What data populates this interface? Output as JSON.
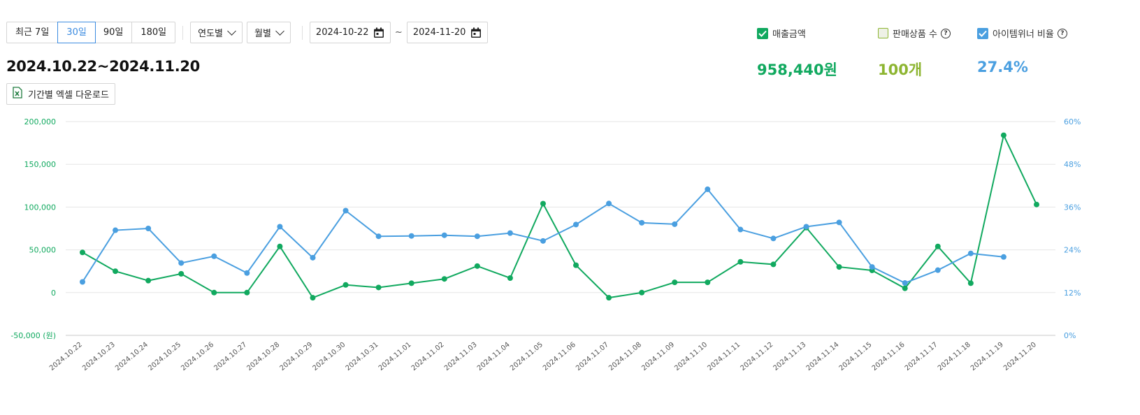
{
  "toolbar": {
    "period_buttons": [
      "최근 7일",
      "30일",
      "90일",
      "180일"
    ],
    "active_period": "30일",
    "yearly_select": "연도별",
    "monthly_select": "월별",
    "start_date": "2024-10-22",
    "end_date": "2024-11-20",
    "tilde": "~"
  },
  "range_title": "2024.10.22~2024.11.20",
  "excel_button": "기간별 엑셀 다운로드",
  "metrics": [
    {
      "label": "매출금액",
      "value": "958,440원",
      "color": "#11a95f",
      "checked": true,
      "help": false
    },
    {
      "label": "판매상품 수",
      "value": "100개",
      "color": "#8db531",
      "checked": false,
      "help": true
    },
    {
      "label": "아이템위너 비율",
      "value": "27.4%",
      "color": "#4a9fe0",
      "checked": true,
      "help": true
    }
  ],
  "colors": {
    "sales": "#11a95f",
    "ratio": "#4a9fe0",
    "accent": "#3b8be0",
    "grid": "#e6e6e6"
  },
  "icons": [
    "calendar-icon",
    "excel-icon",
    "checkbox-icon",
    "help-icon",
    "chevron-down-icon"
  ],
  "chart_data": {
    "type": "line",
    "x": [
      "2024.10.22",
      "2024.10.23",
      "2024.10.24",
      "2024.10.25",
      "2024.10.26",
      "2024.10.27",
      "2024.10.28",
      "2024.10.29",
      "2024.10.30",
      "2024.10.31",
      "2024.11.01",
      "2024.11.02",
      "2024.11.03",
      "2024.11.04",
      "2024.11.05",
      "2024.11.06",
      "2024.11.07",
      "2024.11.08",
      "2024.11.09",
      "2024.11.10",
      "2024.11.11",
      "2024.11.12",
      "2024.11.13",
      "2024.11.14",
      "2024.11.15",
      "2024.11.16",
      "2024.11.17",
      "2024.11.18",
      "2024.11.19",
      "2024.11.20"
    ],
    "y_left": {
      "ticks": [
        "200,000",
        "150,000",
        "100,000",
        "50,000",
        "0",
        "-50,000 (원)"
      ],
      "min": -50000,
      "max": 200000,
      "tick_values": [
        200000,
        150000,
        100000,
        50000,
        0,
        -50000
      ]
    },
    "y_right": {
      "ticks": [
        "60%",
        "48%",
        "36%",
        "24%",
        "12%",
        "0%"
      ],
      "min": 0,
      "max": 60,
      "tick_values": [
        60,
        48,
        36,
        24,
        12,
        0
      ]
    },
    "grid": true,
    "series": [
      {
        "name": "매출금액",
        "axis": "left",
        "color": "#11a95f",
        "values": [
          47000,
          25000,
          14000,
          22000,
          0,
          0,
          54000,
          -6000,
          9000,
          6000,
          11000,
          16000,
          31000,
          17000,
          104000,
          32000,
          -6000,
          0,
          12000,
          12000,
          36000,
          33000,
          76000,
          30000,
          26000,
          5000,
          54000,
          11000,
          184000,
          103000
        ]
      },
      {
        "name": "아이템위너 비율",
        "axis": "right",
        "color": "#4a9fe0",
        "values": [
          15.0,
          29.5,
          30.0,
          20.3,
          22.2,
          17.5,
          30.5,
          21.8,
          35.0,
          27.8,
          27.9,
          28.1,
          27.8,
          28.7,
          26.5,
          31.1,
          37.0,
          31.6,
          31.2,
          41.0,
          29.7,
          27.2,
          30.5,
          31.7,
          19.2,
          14.7,
          18.3,
          23.0,
          22.0,
          null
        ]
      }
    ]
  }
}
